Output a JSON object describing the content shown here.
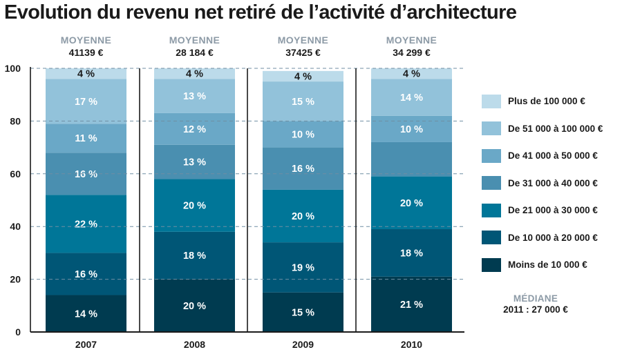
{
  "title": "Evolution du revenu net retiré de l’activité d’architecture",
  "colors": [
    "#003b50",
    "#005676",
    "#007698",
    "#4a8fb0",
    "#6aa8c7",
    "#92c2da",
    "#bcdbea"
  ],
  "chart_data": {
    "type": "bar",
    "stacked": true,
    "title": "Evolution du revenu net retiré de l’activité d’architecture",
    "categories": [
      "2007",
      "2008",
      "2009",
      "2010"
    ],
    "averages": [
      {
        "label": "MOYENNE",
        "value": "41139 €"
      },
      {
        "label": "MOYENNE",
        "value": "28 184 €"
      },
      {
        "label": "MOYENNE",
        "value": "37425 €"
      },
      {
        "label": "MOYENNE",
        "value": "34 299 €"
      }
    ],
    "ylim": [
      0,
      100
    ],
    "yticks": [
      0,
      20,
      40,
      60,
      80,
      100
    ],
    "grid": true,
    "series": [
      {
        "name": "Moins de 10 000 €",
        "values": [
          14,
          20,
          15,
          21
        ],
        "labels": [
          "14 %",
          "20 %",
          "15 %",
          "21 %"
        ]
      },
      {
        "name": "De 10 000 à 20 000 €",
        "values": [
          16,
          18,
          19,
          18
        ],
        "labels": [
          "16 %",
          "18 %",
          "19 %",
          "18 %"
        ]
      },
      {
        "name": "De 21 000 à 30 000 €",
        "values": [
          22,
          20,
          20,
          20
        ],
        "labels": [
          "22 %",
          "20 %",
          "20 %",
          "20 %"
        ]
      },
      {
        "name": "De 31 000 à 40 000 €",
        "values": [
          16,
          13,
          16,
          13
        ],
        "labels": [
          "16 %",
          "13 %",
          "16 %",
          ""
        ]
      },
      {
        "name": "De 41 000 à 50 000 €",
        "values": [
          11,
          12,
          10,
          10
        ],
        "labels": [
          "11 %",
          "12 %",
          "10 %",
          "10 %"
        ]
      },
      {
        "name": "De 51 000 à 100 000 €",
        "values": [
          17,
          13,
          15,
          14
        ],
        "labels": [
          "17 %",
          "13 %",
          "15 %",
          "14 %"
        ]
      },
      {
        "name": "Plus de 100 000 €",
        "values": [
          4,
          4,
          4,
          4
        ],
        "labels": [
          "4 %",
          "4 %",
          "4 %",
          "4 %"
        ]
      }
    ],
    "legend_position": "right"
  },
  "median": {
    "title": "MÉDIANE",
    "value": "2011 : 27 000 €"
  }
}
